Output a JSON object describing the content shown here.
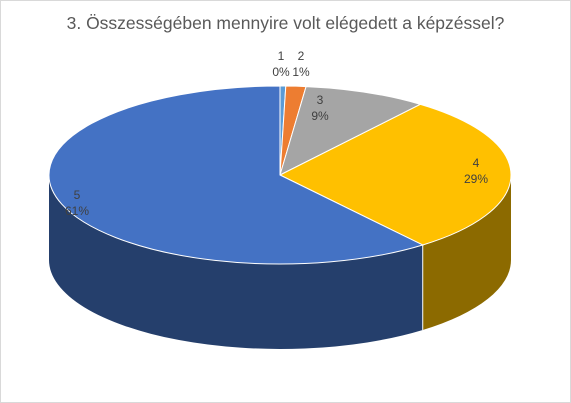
{
  "chart_data": {
    "type": "pie",
    "title": "3. Összességében mennyire volt elégedett a képzéssel?",
    "categories": [
      "1",
      "2",
      "3",
      "4",
      "5"
    ],
    "values": [
      0.4,
      1.4,
      8.6,
      29.0,
      60.6
    ],
    "data_labels": [
      "0%",
      "1%",
      "9%",
      "29%",
      "61%"
    ],
    "colors": [
      "#5b9bd5",
      "#ed7d31",
      "#a5a5a5",
      "#ffc000",
      "#4472c4"
    ],
    "style": "3d"
  }
}
